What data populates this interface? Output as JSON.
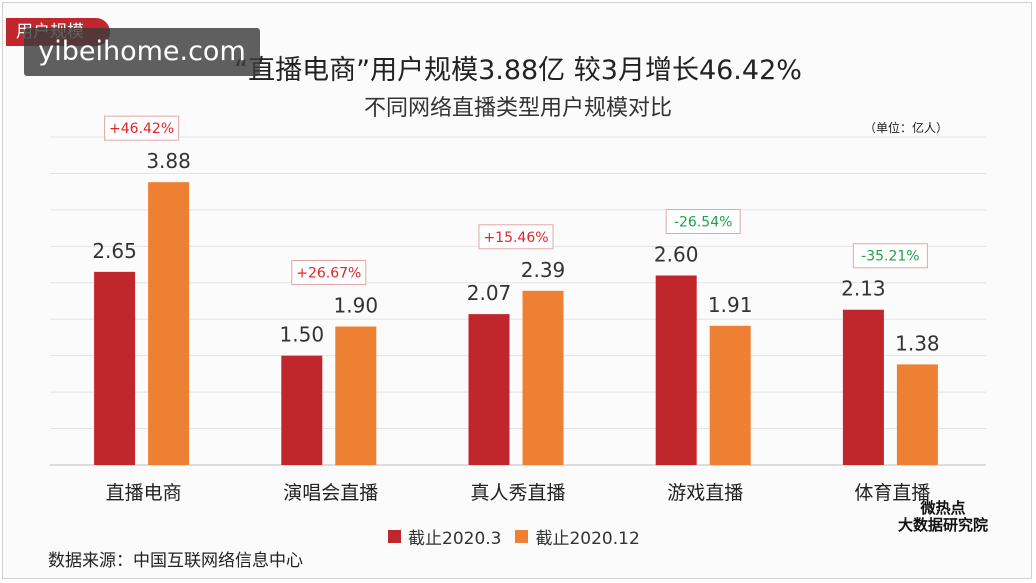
{
  "header": {
    "tag": "用户规模",
    "watermark": "yibeihome.com"
  },
  "chart_data": {
    "type": "bar",
    "title": "“直播电商”用户规模3.88亿 较3月增长46.42%",
    "subtitle": "不同网络直播类型用户规模对比",
    "unit": "（单位：亿人）",
    "categories": [
      "直播电商",
      "演唱会直播",
      "真人秀直播",
      "游戏直播",
      "体育直播"
    ],
    "series": [
      {
        "name": "截止2020.3",
        "values": [
          2.65,
          1.5,
          2.07,
          2.6,
          2.13
        ],
        "color": "#c0272d"
      },
      {
        "name": "截止2020.12",
        "values": [
          3.88,
          1.9,
          2.39,
          1.91,
          1.38
        ],
        "color": "#ee8033"
      }
    ],
    "value_labels": [
      [
        "2.65",
        "1.50",
        "2.07",
        "2.60",
        "2.13"
      ],
      [
        "3.88",
        "1.90",
        "2.39",
        "1.91",
        "1.38"
      ]
    ],
    "changes": [
      "+46.42%",
      "+26.67%",
      "+15.46%",
      "-26.54%",
      "-35.21%"
    ],
    "change_colors": [
      "#e0242a",
      "#e0242a",
      "#e0242a",
      "#1fa34a",
      "#1fa34a"
    ],
    "ylim": [
      0,
      4.5
    ],
    "grid": true,
    "legend_position": "bottom"
  },
  "footer": {
    "source": "数据来源：中国互联网络信息中心",
    "brand_line1": "微热点",
    "brand_line2": "大数据研究院"
  }
}
